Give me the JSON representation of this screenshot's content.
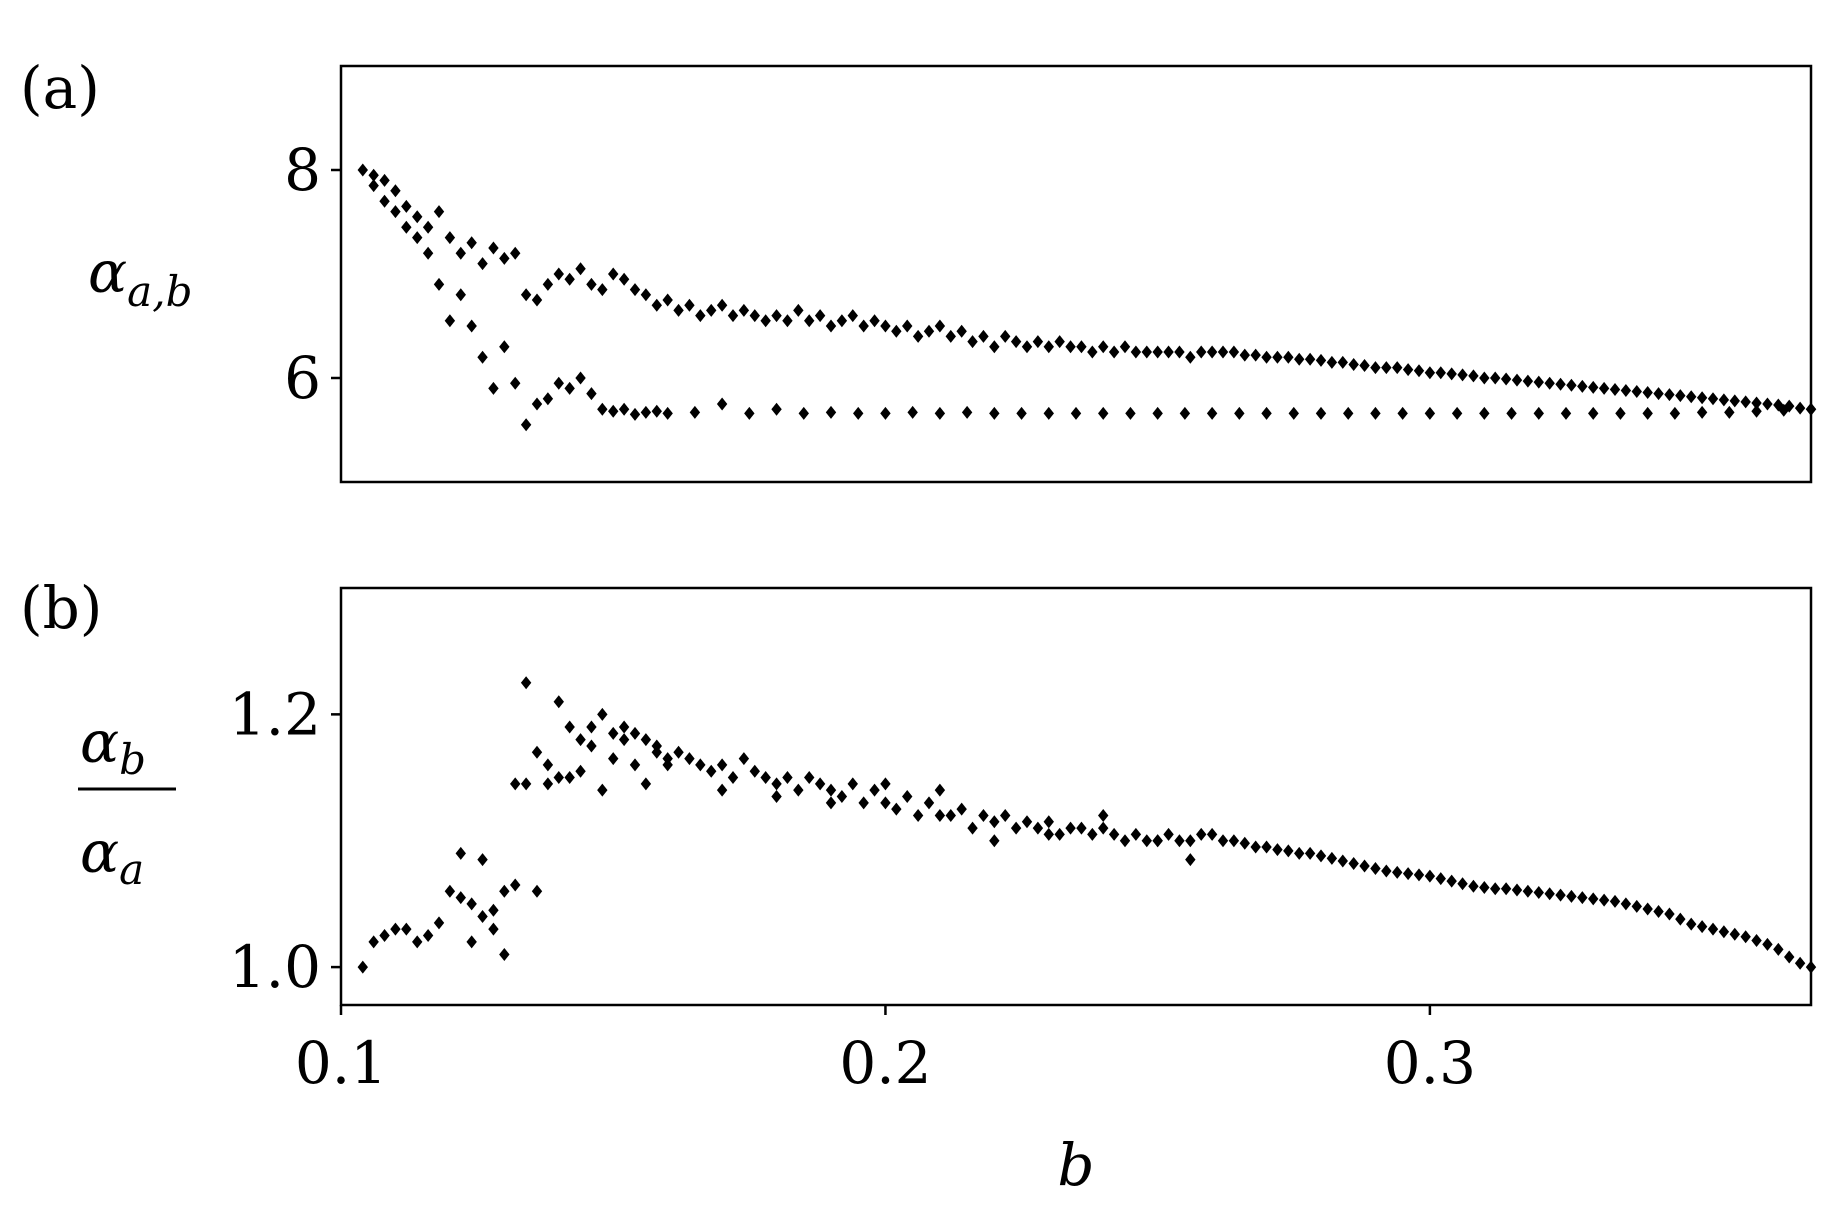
{
  "chart_data": [
    {
      "type": "scatter",
      "panel_label": "(a)",
      "ylabel": "α_{a,b}",
      "xlim": [
        0.1,
        0.37
      ],
      "ylim": [
        5.0,
        9.0
      ],
      "yticks": [
        6,
        8
      ],
      "ytick_labels": [
        "6",
        "8"
      ],
      "marker": "diamond",
      "color": "#000000",
      "series": [
        {
          "x": [
            0.104,
            0.106,
            0.108,
            0.11,
            0.112,
            0.114,
            0.116,
            0.118,
            0.12,
            0.122,
            0.124,
            0.126,
            0.128,
            0.13,
            0.132,
            0.134,
            0.136,
            0.138,
            0.14,
            0.142,
            0.144,
            0.146,
            0.148,
            0.15,
            0.152,
            0.154,
            0.156,
            0.158,
            0.16,
            0.162,
            0.164,
            0.166,
            0.168,
            0.17,
            0.172,
            0.174,
            0.176,
            0.178,
            0.18,
            0.182,
            0.184,
            0.186,
            0.188,
            0.19,
            0.192,
            0.194,
            0.196,
            0.198,
            0.2,
            0.202,
            0.204,
            0.206,
            0.208,
            0.21,
            0.212,
            0.214,
            0.216,
            0.218,
            0.22,
            0.222,
            0.224,
            0.226,
            0.228,
            0.23,
            0.232,
            0.234,
            0.236,
            0.238,
            0.24,
            0.242,
            0.244,
            0.246,
            0.248,
            0.25,
            0.252,
            0.254,
            0.256,
            0.258,
            0.26,
            0.262,
            0.264,
            0.266,
            0.268,
            0.27,
            0.272,
            0.274,
            0.276,
            0.278,
            0.28,
            0.282,
            0.284,
            0.286,
            0.288,
            0.29,
            0.292,
            0.294,
            0.296,
            0.298,
            0.3,
            0.302,
            0.304,
            0.306,
            0.308,
            0.31,
            0.312,
            0.314,
            0.316,
            0.318,
            0.32,
            0.322,
            0.324,
            0.326,
            0.328,
            0.33,
            0.332,
            0.334,
            0.336,
            0.338,
            0.34,
            0.342,
            0.344,
            0.346,
            0.348,
            0.35,
            0.352,
            0.354,
            0.356,
            0.358,
            0.36,
            0.362,
            0.364,
            0.366,
            0.368,
            0.37
          ],
          "y": [
            8.0,
            7.95,
            7.9,
            7.8,
            7.65,
            7.55,
            7.45,
            7.6,
            7.35,
            7.2,
            7.3,
            7.1,
            7.25,
            7.15,
            7.2,
            6.8,
            6.75,
            6.9,
            7.0,
            6.95,
            7.05,
            6.9,
            6.85,
            7.0,
            6.95,
            6.85,
            6.8,
            6.7,
            6.75,
            6.65,
            6.7,
            6.6,
            6.65,
            6.7,
            6.6,
            6.65,
            6.6,
            6.55,
            6.6,
            6.55,
            6.65,
            6.55,
            6.6,
            6.5,
            6.55,
            6.6,
            6.5,
            6.55,
            6.5,
            6.45,
            6.5,
            6.4,
            6.45,
            6.5,
            6.4,
            6.45,
            6.35,
            6.4,
            6.3,
            6.4,
            6.35,
            6.3,
            6.35,
            6.3,
            6.35,
            6.3,
            6.3,
            6.25,
            6.3,
            6.25,
            6.3,
            6.25,
            6.25,
            6.25,
            6.25,
            6.25,
            6.2,
            6.25,
            6.25,
            6.25,
            6.25,
            6.22,
            6.22,
            6.2,
            6.2,
            6.2,
            6.18,
            6.18,
            6.17,
            6.15,
            6.15,
            6.13,
            6.12,
            6.1,
            6.1,
            6.1,
            6.08,
            6.07,
            6.05,
            6.05,
            6.04,
            6.03,
            6.02,
            6.0,
            6.0,
            5.99,
            5.98,
            5.97,
            5.96,
            5.95,
            5.94,
            5.93,
            5.92,
            5.91,
            5.9,
            5.89,
            5.88,
            5.87,
            5.86,
            5.85,
            5.84,
            5.83,
            5.82,
            5.81,
            5.8,
            5.79,
            5.78,
            5.77,
            5.76,
            5.75,
            5.74,
            5.73,
            5.71,
            5.7
          ]
        },
        {
          "x": [
            0.106,
            0.108,
            0.11,
            0.112,
            0.114,
            0.116,
            0.118,
            0.12,
            0.122,
            0.124,
            0.126,
            0.128,
            0.13,
            0.132,
            0.134,
            0.136,
            0.138,
            0.14,
            0.142,
            0.144,
            0.146,
            0.148,
            0.15,
            0.152,
            0.154,
            0.156,
            0.158,
            0.16,
            0.165,
            0.17,
            0.175,
            0.18,
            0.185,
            0.19,
            0.195,
            0.2,
            0.205,
            0.21,
            0.215,
            0.22,
            0.225,
            0.23,
            0.235,
            0.24,
            0.245,
            0.25,
            0.255,
            0.26,
            0.265,
            0.27,
            0.275,
            0.28,
            0.285,
            0.29,
            0.295,
            0.3,
            0.305,
            0.31,
            0.315,
            0.32,
            0.325,
            0.33,
            0.335,
            0.34,
            0.345,
            0.35,
            0.355,
            0.36,
            0.365,
            0.37
          ],
          "y": [
            7.85,
            7.7,
            7.6,
            7.45,
            7.35,
            7.2,
            6.9,
            6.55,
            6.8,
            6.5,
            6.2,
            5.9,
            6.3,
            5.95,
            5.55,
            5.75,
            5.8,
            5.95,
            5.9,
            6.0,
            5.85,
            5.7,
            5.68,
            5.7,
            5.65,
            5.67,
            5.68,
            5.66,
            5.67,
            5.75,
            5.66,
            5.7,
            5.66,
            5.67,
            5.66,
            5.66,
            5.67,
            5.66,
            5.67,
            5.66,
            5.66,
            5.66,
            5.66,
            5.66,
            5.66,
            5.66,
            5.66,
            5.66,
            5.66,
            5.66,
            5.66,
            5.66,
            5.66,
            5.66,
            5.66,
            5.66,
            5.66,
            5.66,
            5.66,
            5.66,
            5.66,
            5.66,
            5.66,
            5.66,
            5.66,
            5.67,
            5.67,
            5.68,
            5.69,
            5.7
          ]
        }
      ]
    },
    {
      "type": "scatter",
      "panel_label": "(b)",
      "ylabel_numerator": "α_b",
      "ylabel_denominator": "α_a",
      "xlabel": "b",
      "xlim": [
        0.1,
        0.37
      ],
      "ylim": [
        0.97,
        1.3
      ],
      "xticks": [
        0.1,
        0.2,
        0.3
      ],
      "xtick_labels": [
        "0.1",
        "0.2",
        "0.3"
      ],
      "yticks": [
        1.0,
        1.2
      ],
      "ytick_labels": [
        "1.0",
        "1.2"
      ],
      "marker": "diamond",
      "color": "#000000",
      "series": [
        {
          "x": [
            0.104,
            0.106,
            0.108,
            0.11,
            0.112,
            0.114,
            0.116,
            0.118,
            0.12,
            0.122,
            0.124,
            0.126,
            0.128,
            0.13,
            0.132,
            0.134,
            0.136,
            0.138,
            0.14,
            0.142,
            0.144,
            0.146,
            0.148,
            0.15,
            0.152,
            0.154,
            0.156,
            0.158,
            0.16,
            0.162,
            0.164,
            0.166,
            0.168,
            0.17,
            0.172,
            0.174,
            0.176,
            0.178,
            0.18,
            0.182,
            0.184,
            0.186,
            0.188,
            0.19,
            0.192,
            0.194,
            0.196,
            0.198,
            0.2,
            0.202,
            0.204,
            0.206,
            0.208,
            0.21,
            0.212,
            0.214,
            0.216,
            0.218,
            0.22,
            0.222,
            0.224,
            0.226,
            0.228,
            0.23,
            0.232,
            0.234,
            0.236,
            0.238,
            0.24,
            0.242,
            0.244,
            0.246,
            0.248,
            0.25,
            0.252,
            0.254,
            0.256,
            0.258,
            0.26,
            0.262,
            0.264,
            0.266,
            0.268,
            0.27,
            0.272,
            0.274,
            0.276,
            0.278,
            0.28,
            0.282,
            0.284,
            0.286,
            0.288,
            0.29,
            0.292,
            0.294,
            0.296,
            0.298,
            0.3,
            0.302,
            0.304,
            0.306,
            0.308,
            0.31,
            0.312,
            0.314,
            0.316,
            0.318,
            0.32,
            0.322,
            0.324,
            0.326,
            0.328,
            0.33,
            0.332,
            0.334,
            0.336,
            0.338,
            0.34,
            0.342,
            0.344,
            0.346,
            0.348,
            0.35,
            0.352,
            0.354,
            0.356,
            0.358,
            0.36,
            0.362,
            0.364,
            0.366,
            0.368,
            0.37
          ],
          "y": [
            1.0,
            1.02,
            1.025,
            1.03,
            1.03,
            1.02,
            1.025,
            1.035,
            1.06,
            1.055,
            1.05,
            1.04,
            1.045,
            1.06,
            1.145,
            1.225,
            1.17,
            1.16,
            1.21,
            1.19,
            1.18,
            1.19,
            1.2,
            1.185,
            1.19,
            1.185,
            1.18,
            1.175,
            1.16,
            1.17,
            1.165,
            1.16,
            1.155,
            1.16,
            1.15,
            1.165,
            1.155,
            1.15,
            1.145,
            1.15,
            1.14,
            1.15,
            1.145,
            1.14,
            1.135,
            1.145,
            1.13,
            1.14,
            1.13,
            1.125,
            1.135,
            1.12,
            1.13,
            1.14,
            1.12,
            1.125,
            1.11,
            1.12,
            1.115,
            1.12,
            1.11,
            1.115,
            1.11,
            1.115,
            1.105,
            1.11,
            1.11,
            1.105,
            1.11,
            1.105,
            1.1,
            1.105,
            1.1,
            1.1,
            1.105,
            1.1,
            1.1,
            1.105,
            1.105,
            1.1,
            1.1,
            1.098,
            1.095,
            1.095,
            1.093,
            1.092,
            1.09,
            1.09,
            1.088,
            1.086,
            1.084,
            1.082,
            1.08,
            1.078,
            1.076,
            1.075,
            1.074,
            1.073,
            1.072,
            1.07,
            1.068,
            1.066,
            1.064,
            1.063,
            1.062,
            1.062,
            1.061,
            1.06,
            1.059,
            1.058,
            1.057,
            1.056,
            1.055,
            1.054,
            1.053,
            1.052,
            1.05,
            1.048,
            1.046,
            1.044,
            1.042,
            1.038,
            1.034,
            1.032,
            1.03,
            1.028,
            1.026,
            1.024,
            1.021,
            1.018,
            1.014,
            1.008,
            1.003,
            1.0
          ]
        },
        {
          "x": [
            0.122,
            0.124,
            0.126,
            0.128,
            0.13,
            0.132,
            0.134,
            0.136,
            0.138,
            0.14,
            0.142,
            0.144,
            0.146,
            0.148,
            0.15,
            0.152,
            0.154,
            0.156,
            0.158,
            0.16,
            0.17,
            0.18,
            0.19,
            0.2,
            0.21,
            0.22,
            0.23,
            0.24,
            0.25,
            0.256
          ],
          "y": [
            1.09,
            1.02,
            1.085,
            1.03,
            1.01,
            1.065,
            1.145,
            1.06,
            1.145,
            1.15,
            1.15,
            1.155,
            1.175,
            1.14,
            1.165,
            1.18,
            1.16,
            1.145,
            1.17,
            1.165,
            1.14,
            1.135,
            1.13,
            1.145,
            1.12,
            1.1,
            1.105,
            1.12,
            1.1,
            1.085
          ]
        }
      ]
    }
  ]
}
